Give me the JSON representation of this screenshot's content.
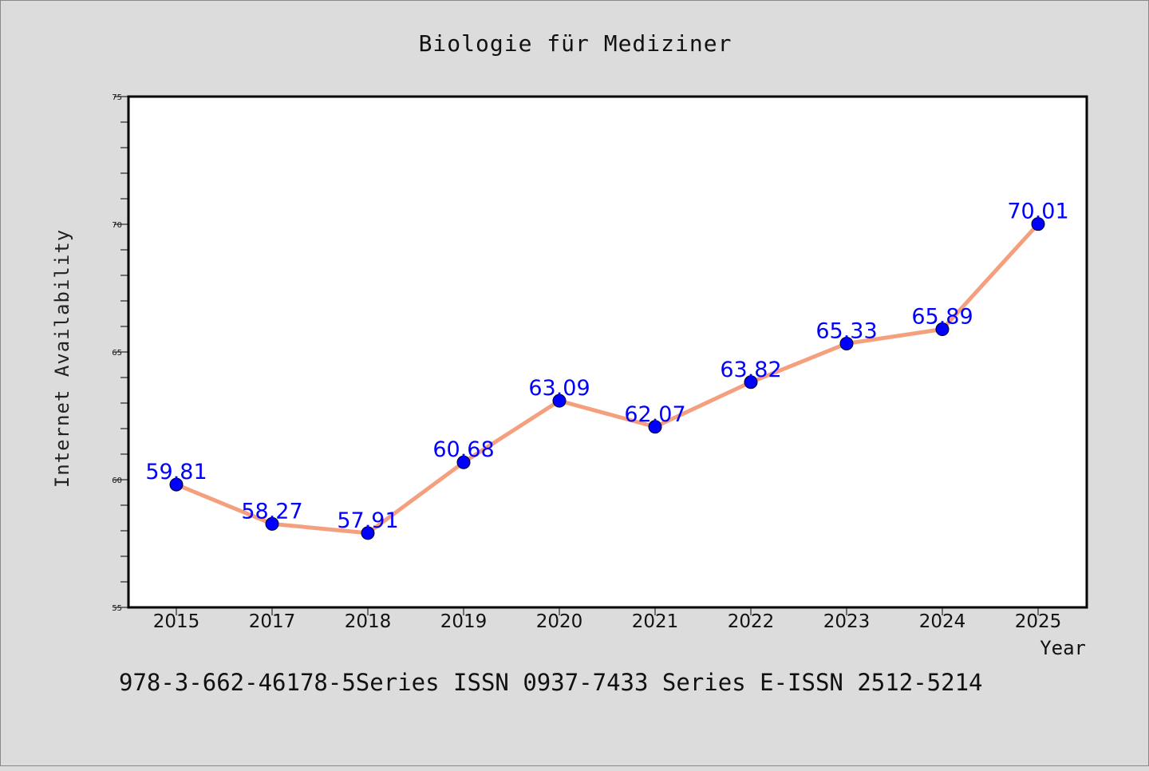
{
  "chart_data": {
    "type": "line",
    "title": "Biologie für Mediziner",
    "xlabel": "Year",
    "ylabel": "Internet Availability",
    "categories": [
      "2015",
      "2017",
      "2018",
      "2019",
      "2020",
      "2021",
      "2022",
      "2023",
      "2024",
      "2025"
    ],
    "series": [
      {
        "values": [
          59.81,
          58.27,
          57.91,
          60.68,
          63.09,
          62.07,
          63.82,
          65.33,
          65.89,
          70.01
        ],
        "labels": [
          "59.81",
          "58.27",
          "57.91",
          "60.68",
          "63.09",
          "62.07",
          "63.82",
          "65.33",
          "65.89",
          "70.01"
        ],
        "line_color": "#f4a07f",
        "marker_color": "#0000ff",
        "label_color": "#0000ff"
      }
    ],
    "ylim": [
      55,
      75
    ],
    "yticks": [
      "55",
      "60",
      "65",
      "70",
      "75"
    ],
    "grid": false,
    "legend": "none"
  },
  "footer": {
    "text": "978-3-662-46178-5Series ISSN 0937-7433 Series E-ISSN 2512-5214"
  },
  "colors": {
    "background": "#dcdcdc",
    "plot_background": "#ffffff",
    "axis": "#000000"
  }
}
